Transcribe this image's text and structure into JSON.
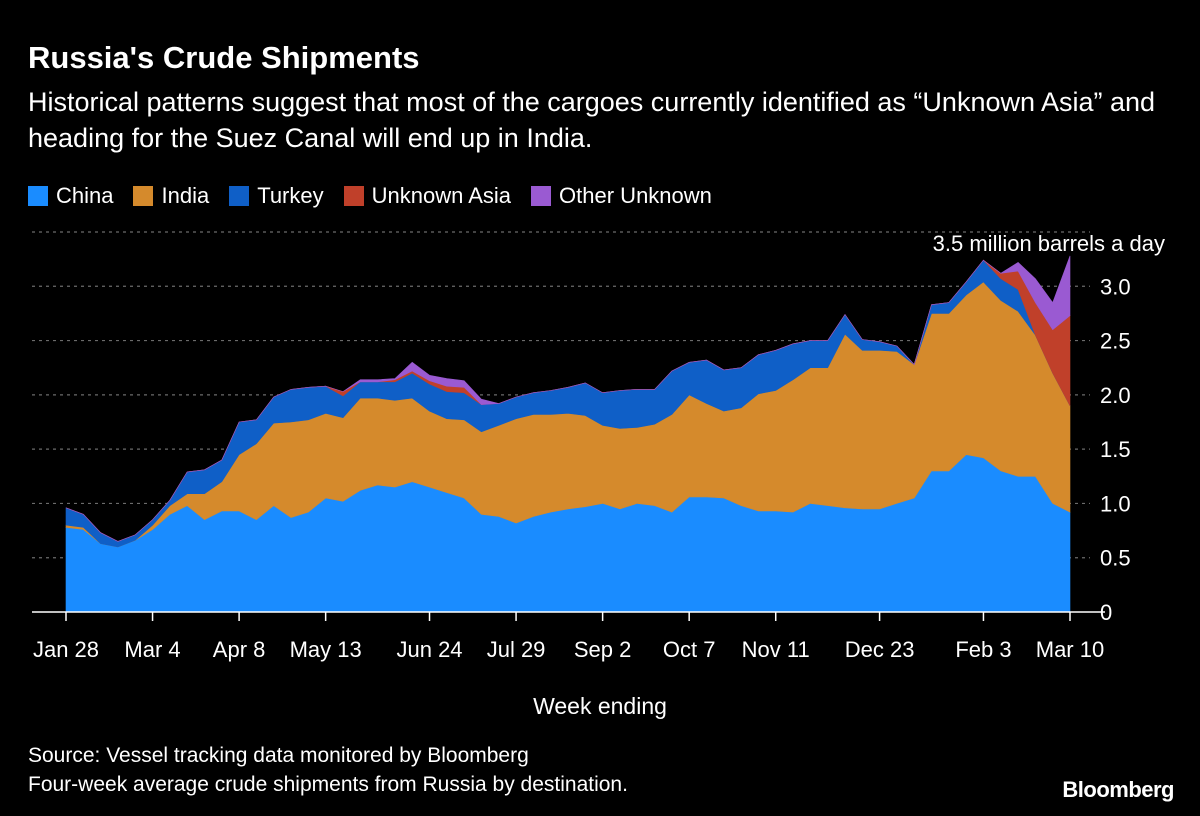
{
  "header": {
    "title": "Russia's Crude Shipments",
    "subtitle": "Historical patterns suggest that most of the cargoes currently identified as “Unknown Asia” and heading for the Suez Canal will end up in India."
  },
  "legend": [
    {
      "label": "China",
      "color": "#1a8cff"
    },
    {
      "label": "India",
      "color": "#d58a2c"
    },
    {
      "label": "Turkey",
      "color": "#0f5fc7"
    },
    {
      "label": "Unknown Asia",
      "color": "#c0402a"
    },
    {
      "label": "Other Unknown",
      "color": "#9a5ad2"
    }
  ],
  "footer": {
    "source": "Source: Vessel tracking data monitored by Bloomberg",
    "note": "Four-week average crude shipments from Russia by destination.",
    "logo": "Bloomberg"
  },
  "chart_data": {
    "type": "area",
    "stacked": true,
    "xlabel": "Week ending",
    "ylabel": "3.5 million barrels a day",
    "ylim": [
      0,
      3.5
    ],
    "yticks": [
      0,
      0.5,
      1.0,
      1.5,
      2.0,
      2.5,
      3.0
    ],
    "ytick_labels": [
      "0",
      "0.5",
      "1.0",
      "1.5",
      "2.0",
      "2.5",
      "3.0"
    ],
    "xtick_labels": [
      "Jan 28",
      "Mar 4",
      "Apr 8",
      "May 13",
      "Jun 24",
      "Jul 29",
      "Sep 2",
      "Oct 7",
      "Nov 11",
      "Dec 23",
      "Feb 3",
      "Mar 10"
    ],
    "xtick_weeks": [
      0,
      5,
      10,
      15,
      21,
      26,
      31,
      36,
      41,
      47,
      53,
      58
    ],
    "grid": true,
    "series": [
      {
        "name": "China",
        "color": "#1a8cff",
        "values": [
          0.78,
          0.76,
          0.63,
          0.6,
          0.66,
          0.76,
          0.9,
          0.98,
          0.85,
          0.93,
          0.93,
          0.85,
          0.98,
          0.87,
          0.92,
          1.05,
          1.02,
          1.12,
          1.17,
          1.15,
          1.2,
          1.15,
          1.1,
          1.05,
          0.9,
          0.88,
          0.82,
          0.88,
          0.92,
          0.95,
          0.97,
          1.0,
          0.95,
          1.0,
          0.98,
          0.92,
          1.06,
          1.06,
          1.05,
          0.98,
          0.93,
          0.93,
          0.92,
          1.0,
          0.98,
          0.96,
          0.95,
          0.95,
          1.0,
          1.05,
          1.3,
          1.3,
          1.45,
          1.42,
          1.3,
          1.25,
          1.25,
          1.0,
          0.92
        ]
      },
      {
        "name": "India",
        "color": "#d58a2c",
        "values": [
          0.02,
          0.02,
          0.0,
          0.0,
          0.0,
          0.04,
          0.08,
          0.11,
          0.24,
          0.27,
          0.52,
          0.7,
          0.76,
          0.88,
          0.85,
          0.78,
          0.77,
          0.85,
          0.8,
          0.8,
          0.77,
          0.7,
          0.68,
          0.72,
          0.76,
          0.84,
          0.96,
          0.94,
          0.9,
          0.88,
          0.84,
          0.72,
          0.74,
          0.7,
          0.75,
          0.9,
          0.94,
          0.86,
          0.8,
          0.9,
          1.08,
          1.11,
          1.22,
          1.25,
          1.27,
          1.6,
          1.46,
          1.46,
          1.4,
          1.23,
          1.45,
          1.45,
          1.47,
          1.62,
          1.57,
          1.52,
          1.3,
          1.2,
          0.98
        ]
      },
      {
        "name": "Turkey",
        "color": "#0f5fc7",
        "values": [
          0.16,
          0.12,
          0.1,
          0.05,
          0.05,
          0.05,
          0.05,
          0.2,
          0.22,
          0.2,
          0.3,
          0.22,
          0.24,
          0.3,
          0.3,
          0.25,
          0.2,
          0.15,
          0.15,
          0.17,
          0.23,
          0.25,
          0.25,
          0.25,
          0.25,
          0.2,
          0.2,
          0.2,
          0.22,
          0.24,
          0.3,
          0.3,
          0.35,
          0.35,
          0.32,
          0.4,
          0.3,
          0.4,
          0.38,
          0.37,
          0.36,
          0.37,
          0.33,
          0.25,
          0.25,
          0.18,
          0.1,
          0.08,
          0.05,
          0.0,
          0.08,
          0.1,
          0.12,
          0.2,
          0.2,
          0.2,
          0.0,
          0.0,
          0.0
        ]
      },
      {
        "name": "Unknown Asia",
        "color": "#c0402a",
        "values": [
          0,
          0,
          0,
          0,
          0,
          0,
          0,
          0,
          0,
          0,
          0,
          0,
          0,
          0,
          0,
          0,
          0.04,
          0,
          0.0,
          0.02,
          0.02,
          0.03,
          0.05,
          0.05,
          0,
          0,
          0,
          0,
          0,
          0,
          0,
          0,
          0,
          0,
          0,
          0,
          0,
          0,
          0,
          0,
          0,
          0,
          0,
          0,
          0,
          0,
          0,
          0,
          0,
          0,
          0,
          0,
          0,
          0,
          0.05,
          0.17,
          0.3,
          0.4,
          0.83
        ]
      },
      {
        "name": "Other Unknown",
        "color": "#9a5ad2",
        "values": [
          0,
          0,
          0,
          0,
          0,
          0,
          0,
          0,
          0,
          0,
          0,
          0,
          0,
          0,
          0,
          0,
          0,
          0.02,
          0.02,
          0.01,
          0.08,
          0.05,
          0.07,
          0.06,
          0.05,
          0,
          0,
          0,
          0,
          0,
          0,
          0,
          0,
          0,
          0,
          0,
          0,
          0,
          0,
          0,
          0,
          0,
          0,
          0,
          0,
          0,
          0,
          0,
          0,
          0,
          0,
          0,
          0,
          0,
          0,
          0.08,
          0.22,
          0.25,
          0.55
        ]
      }
    ]
  }
}
